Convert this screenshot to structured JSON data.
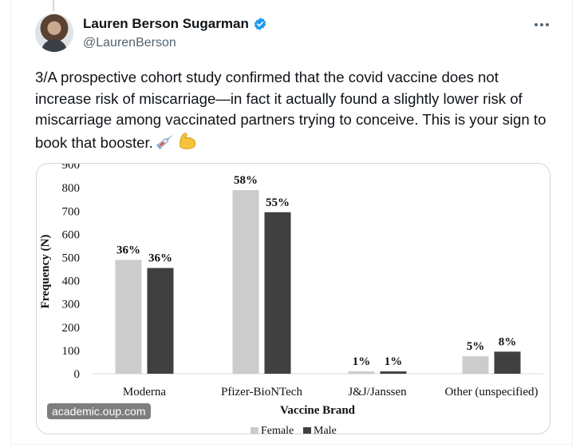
{
  "tweet": {
    "display_name": "Lauren Berson Sugarman",
    "handle": "@LaurenBerson",
    "verified": true,
    "text": "3/A prospective cohort study confirmed that the covid vaccine does not increase risk of miscarriage—in fact it actually found a slightly lower risk of miscarriage among vaccinated partners trying to conceive. This is your sign to book that booster.",
    "emojis": [
      "syringe-emoji",
      "flexed-biceps-emoji"
    ],
    "media_source": "academic.oup.com"
  },
  "colors": {
    "verified_blue": "#1d9bf0",
    "female_bar": "#cccccc",
    "male_bar": "#404040"
  },
  "chart_data": {
    "type": "bar",
    "xlabel": "Vaccine Brand",
    "ylabel": "Frequency (N)",
    "ylim": [
      0,
      900
    ],
    "yticks": [
      "0",
      "100",
      "200",
      "300",
      "400",
      "500",
      "600",
      "700",
      "800",
      "900"
    ],
    "categories": [
      "Moderna",
      "Pfizer-BioNTech",
      "J&J/Janssen",
      "Other (unspecified)"
    ],
    "series": [
      {
        "name": "Female",
        "values": [
          490,
          790,
          10,
          75
        ],
        "labels": [
          "36%",
          "58%",
          "1%",
          "5%"
        ]
      },
      {
        "name": "Male",
        "values": [
          455,
          695,
          10,
          95
        ],
        "labels": [
          "36%",
          "55%",
          "1%",
          "8%"
        ]
      }
    ],
    "legend_position": "bottom",
    "grid": false
  }
}
